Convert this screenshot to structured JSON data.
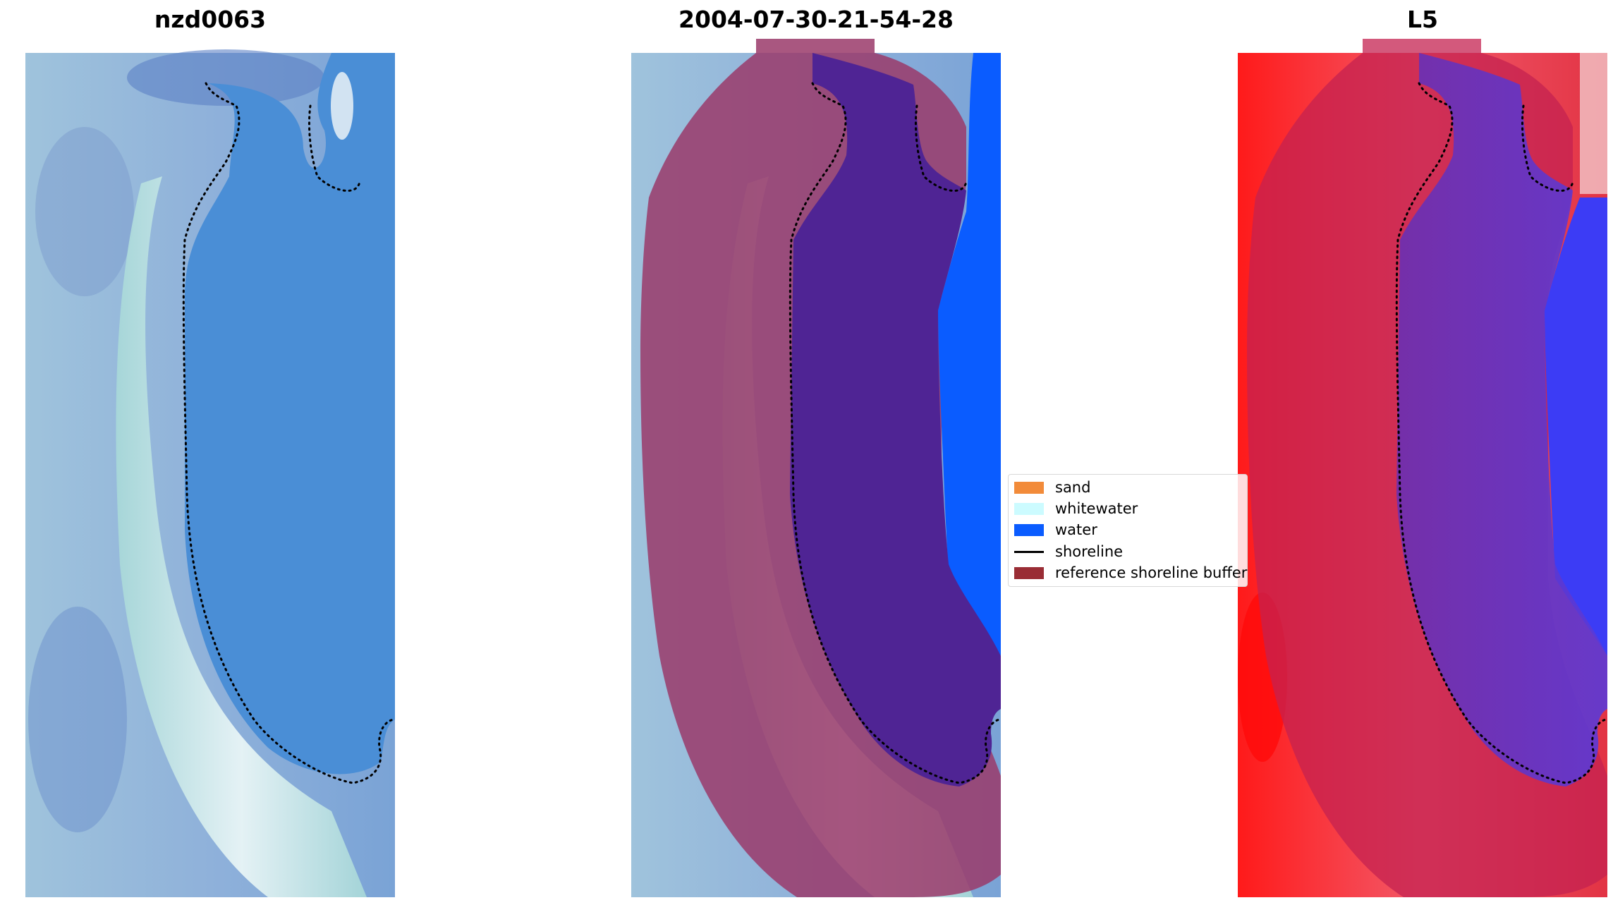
{
  "panels": [
    {
      "title": "nzd0063"
    },
    {
      "title": "2004-07-30-21-54-28"
    },
    {
      "title": "L5"
    }
  ],
  "legend": {
    "items": [
      {
        "label": "sand",
        "color": "#f28b3a",
        "kind": "patch"
      },
      {
        "label": "whitewater",
        "color": "#ccfbff",
        "kind": "patch"
      },
      {
        "label": "water",
        "color": "#0a5cff",
        "kind": "patch"
      },
      {
        "label": "shoreline",
        "color": "#000000",
        "kind": "line"
      },
      {
        "label": "reference shoreline buffer",
        "color": "#9a2d35",
        "kind": "patch"
      }
    ]
  },
  "colors": {
    "rgb_water": "#4a8ed6",
    "rgb_beach": "#dff4f2",
    "classified_water": "#0a5cff",
    "classified_buffer_overlay": "#9a3a6a",
    "classified_inner_water": "#4f2494",
    "ndwi_land": "#e8323c",
    "ndwi_water": "#3c3cf5"
  }
}
